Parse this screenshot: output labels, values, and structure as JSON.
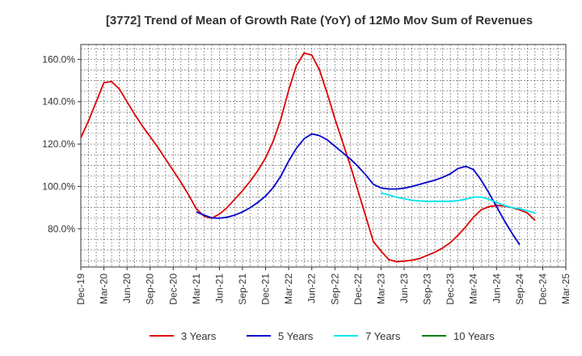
{
  "chart_data": {
    "type": "line",
    "title": "[3772]  Trend of Mean of Growth Rate (YoY) of 12Mo Mov Sum of Revenues",
    "xlabel": "",
    "ylabel": "",
    "ylim": [
      62,
      167
    ],
    "y_ticks": [
      80,
      100,
      120,
      140,
      160
    ],
    "y_tick_labels": [
      "80.0%",
      "100.0%",
      "120.0%",
      "140.0%",
      "160.0%"
    ],
    "x_tick_labels": [
      "Dec-19",
      "Mar-20",
      "Jun-20",
      "Sep-20",
      "Dec-20",
      "Mar-21",
      "Jun-21",
      "Sep-21",
      "Dec-21",
      "Mar-22",
      "Jun-22",
      "Sep-22",
      "Dec-22",
      "Mar-23",
      "Jun-23",
      "Sep-23",
      "Dec-23",
      "Mar-24",
      "Jun-24",
      "Sep-24",
      "Dec-24",
      "Mar-25"
    ],
    "x_range_months": [
      0,
      63
    ],
    "grid": true,
    "legend_position": "bottom",
    "series": [
      {
        "name": "3 Years",
        "color": "#dd0000",
        "x_start_month": 0,
        "values": [
          123,
          131,
          140,
          149,
          149.5,
          146,
          140,
          134,
          128.5,
          123.5,
          118.5,
          113,
          107.5,
          102,
          96,
          89.5,
          86,
          85,
          87,
          90,
          94,
          98,
          102.5,
          107.5,
          113.5,
          121.5,
          132,
          145.5,
          157,
          163,
          162,
          155,
          144,
          132,
          121,
          110,
          98,
          86,
          74,
          69.5,
          65.5,
          64.5,
          64.8,
          65.2,
          66,
          67.5,
          69,
          71,
          73.5,
          77,
          81,
          85.5,
          89,
          90.5,
          91,
          90.8,
          90,
          89,
          87.5,
          84
        ]
      },
      {
        "name": "5 Years",
        "color": "#0000cc",
        "x_start_month": 15,
        "values": [
          88,
          86.5,
          85.2,
          85,
          85.5,
          86.5,
          88,
          90,
          92.5,
          95.5,
          99.5,
          105,
          112,
          118,
          122.5,
          124.8,
          124,
          122,
          119,
          116,
          113,
          109.5,
          105.5,
          101,
          99.3,
          98.8,
          98.8,
          99.2,
          100,
          101,
          102,
          103,
          104.3,
          106,
          108.5,
          109.5,
          108,
          103,
          97,
          90.5,
          84,
          78,
          72.5
        ]
      },
      {
        "name": "7 Years",
        "color": "#00e5ee",
        "x_start_month": 39,
        "values": [
          97,
          96,
          95,
          94.2,
          93.5,
          93.2,
          93,
          93,
          93,
          93,
          93.3,
          94,
          95,
          95,
          94,
          92.5,
          91,
          90,
          89.5,
          88.5,
          87.5
        ]
      },
      {
        "name": "10 Years",
        "color": "#008000",
        "x_start_month": 0,
        "values": []
      }
    ]
  }
}
